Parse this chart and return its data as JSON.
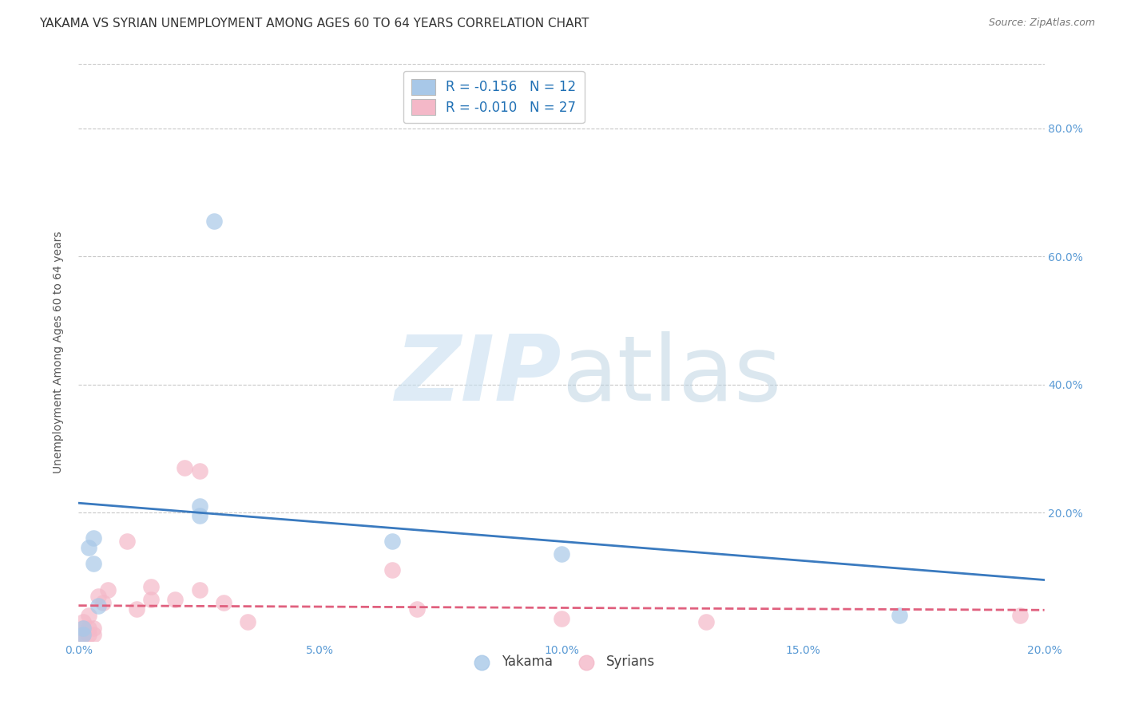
{
  "title": "YAKAMA VS SYRIAN UNEMPLOYMENT AMONG AGES 60 TO 64 YEARS CORRELATION CHART",
  "source": "Source: ZipAtlas.com",
  "ylabel": "Unemployment Among Ages 60 to 64 years",
  "xlim": [
    0.0,
    0.2
  ],
  "ylim": [
    0.0,
    0.9
  ],
  "xticks": [
    0.0,
    0.05,
    0.1,
    0.15,
    0.2
  ],
  "yticks": [
    0.2,
    0.4,
    0.6,
    0.8
  ],
  "yakama_x": [
    0.001,
    0.001,
    0.002,
    0.003,
    0.003,
    0.004,
    0.025,
    0.025,
    0.028,
    0.065,
    0.1,
    0.17
  ],
  "yakama_y": [
    0.01,
    0.02,
    0.145,
    0.12,
    0.16,
    0.055,
    0.21,
    0.195,
    0.655,
    0.155,
    0.135,
    0.04
  ],
  "syrian_x": [
    0.001,
    0.001,
    0.001,
    0.001,
    0.002,
    0.002,
    0.002,
    0.003,
    0.003,
    0.004,
    0.005,
    0.006,
    0.01,
    0.012,
    0.015,
    0.015,
    0.02,
    0.022,
    0.025,
    0.025,
    0.03,
    0.035,
    0.065,
    0.07,
    0.1,
    0.13,
    0.195
  ],
  "syrian_y": [
    0.01,
    0.01,
    0.02,
    0.03,
    0.01,
    0.02,
    0.04,
    0.01,
    0.02,
    0.07,
    0.06,
    0.08,
    0.155,
    0.05,
    0.065,
    0.085,
    0.065,
    0.27,
    0.265,
    0.08,
    0.06,
    0.03,
    0.11,
    0.05,
    0.035,
    0.03,
    0.04
  ],
  "yakama_R": -0.156,
  "yakama_N": 12,
  "syrian_R": -0.01,
  "syrian_N": 27,
  "blue_scatter_color": "#a8c8e8",
  "blue_line_color": "#3a7abf",
  "pink_scatter_color": "#f4b8c8",
  "pink_line_color": "#e0607e",
  "legend_blue_fill": "#a8c8e8",
  "legend_pink_fill": "#f4b8c8",
  "watermark_color": "#c8dff0",
  "grid_color": "#c8c8c8",
  "background_color": "#ffffff",
  "title_fontsize": 11,
  "axis_label_fontsize": 10,
  "tick_fontsize": 10,
  "legend_fontsize": 12,
  "source_fontsize": 9,
  "tick_color": "#5b9bd5",
  "ylabel_color": "#555555",
  "title_color": "#333333"
}
